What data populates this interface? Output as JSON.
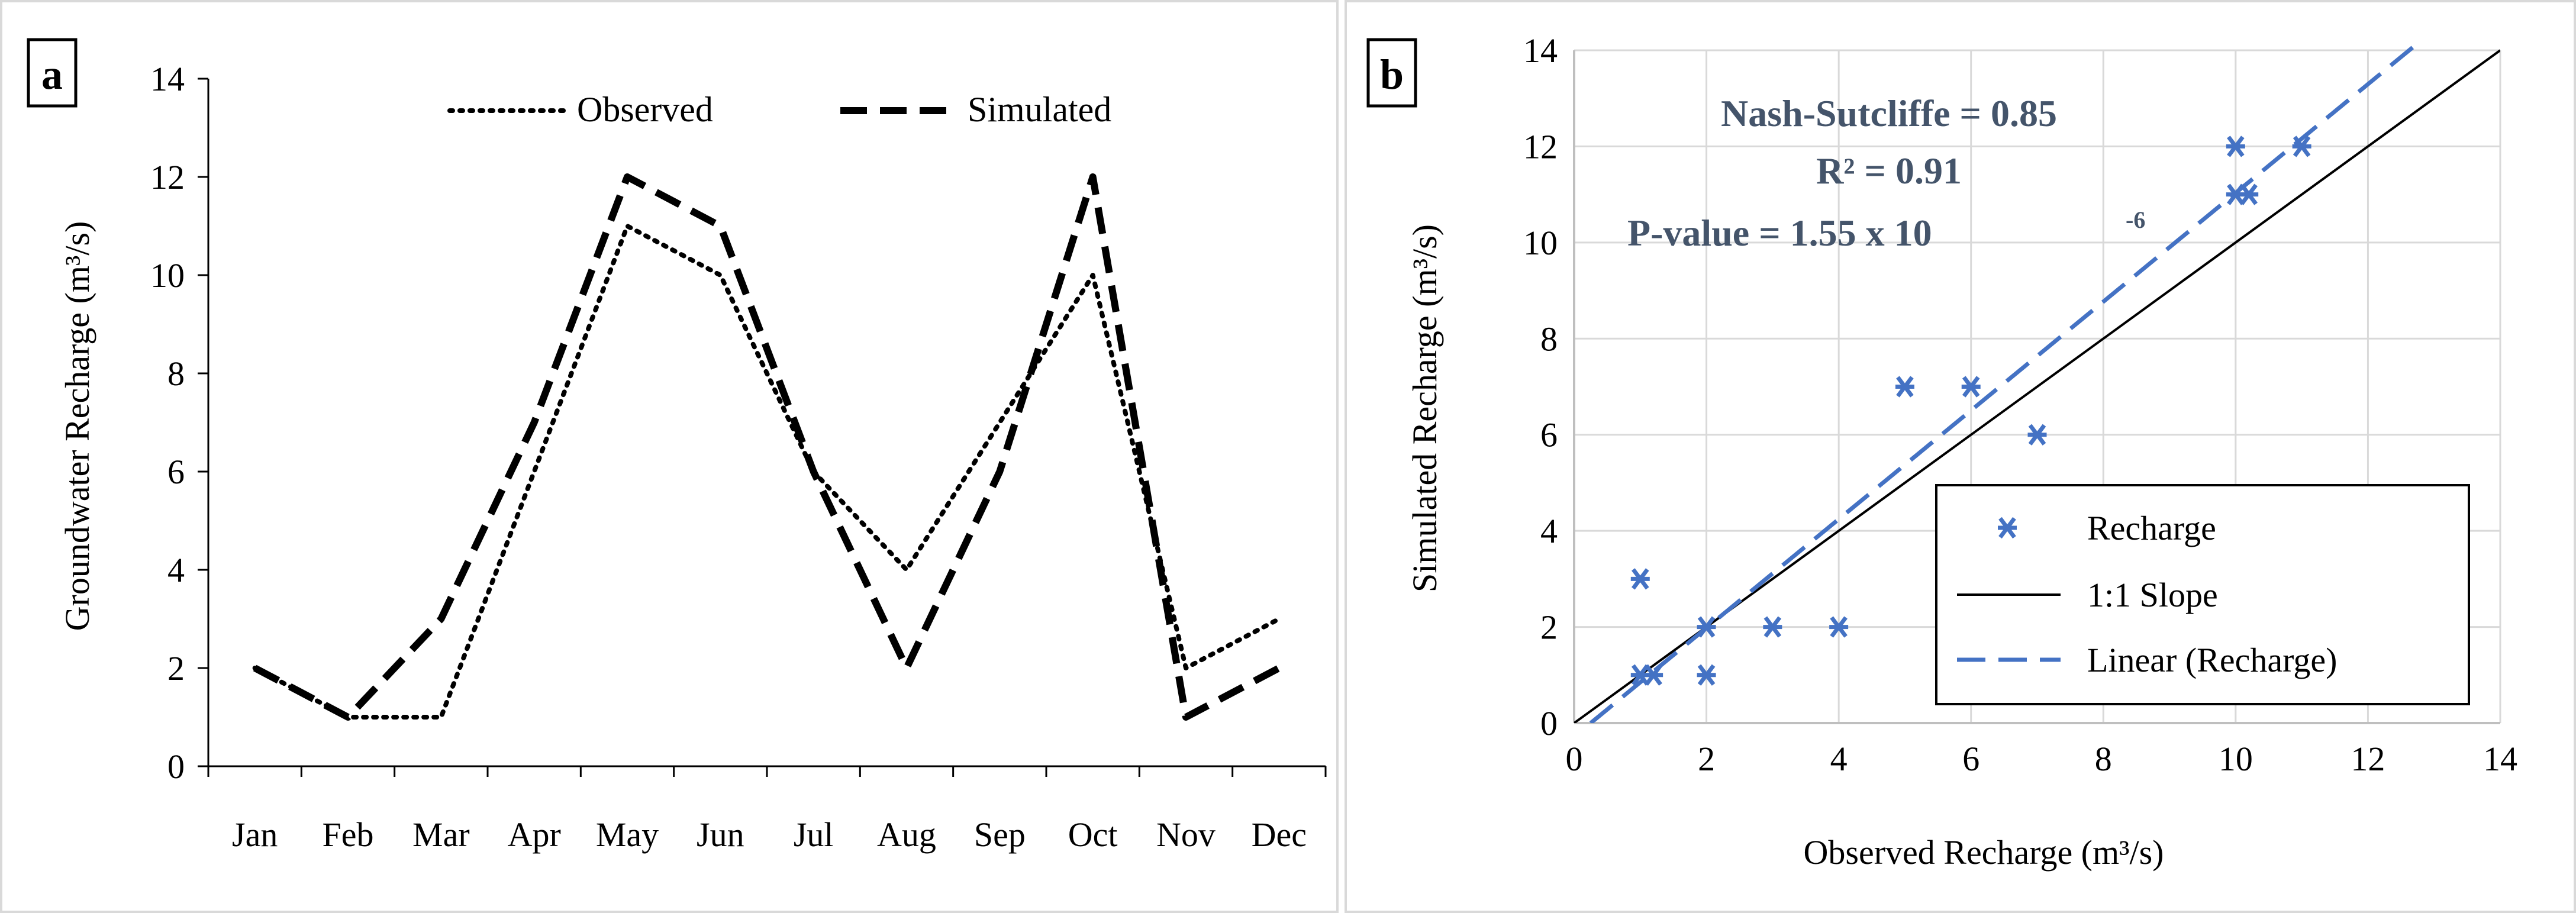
{
  "chart_data": [
    {
      "type": "line",
      "panel_label": "a",
      "categories": [
        "Jan",
        "Feb",
        "Mar",
        "Apr",
        "May",
        "Jun",
        "Jul",
        "Aug",
        "Sep",
        "Oct",
        "Nov",
        "Dec"
      ],
      "series": [
        {
          "name": "Observed",
          "style": "dotted",
          "color": "#000000",
          "values": [
            2,
            1,
            1,
            6,
            11,
            10,
            6,
            4,
            7,
            10,
            2,
            3
          ]
        },
        {
          "name": "Simulated",
          "style": "dashed",
          "color": "#000000",
          "values": [
            2,
            1,
            3,
            7,
            12,
            11,
            6,
            2,
            6,
            12,
            1,
            2
          ]
        }
      ],
      "title": "",
      "xlabel": "",
      "ylabel": "Groundwater Recharge (m³/s)",
      "ylim": [
        0,
        14
      ],
      "yticks": [
        0,
        2,
        4,
        6,
        8,
        10,
        12,
        14
      ],
      "grid": false,
      "legend_position": "top"
    },
    {
      "type": "scatter",
      "panel_label": "b",
      "series": [
        {
          "name": "Recharge",
          "marker": "asterisk",
          "color": "#4472c4",
          "points": [
            [
              1,
              3
            ],
            [
              1,
              1
            ],
            [
              1.2,
              1
            ],
            [
              2,
              2
            ],
            [
              2,
              1
            ],
            [
              3,
              2
            ],
            [
              4,
              2
            ],
            [
              5,
              7
            ],
            [
              6,
              7
            ],
            [
              7,
              6
            ],
            [
              10,
              12
            ],
            [
              10,
              11
            ],
            [
              10.2,
              11
            ],
            [
              11,
              12
            ]
          ]
        },
        {
          "name": "1:1 Slope",
          "style": "solid",
          "color": "#000000",
          "line": [
            [
              0,
              0
            ],
            [
              14,
              14
            ]
          ]
        },
        {
          "name": "Linear (Recharge)",
          "style": "dashed",
          "color": "#4472c4",
          "line": [
            [
              0.25,
              0
            ],
            [
              12.8,
              14.2
            ]
          ]
        }
      ],
      "annotations": [
        "Nash-Sutcliffe = 0.85",
        "R² = 0.91",
        "P-value = 1.55 x 10",
        "-6"
      ],
      "annotation_color": "#44546a",
      "title": "",
      "xlabel": "Observed Recharge (m³/s)",
      "ylabel": "Simulated Recharge (m³/s)",
      "xlim": [
        0,
        14
      ],
      "ylim": [
        0,
        14
      ],
      "xticks": [
        0,
        2,
        4,
        6,
        8,
        10,
        12,
        14
      ],
      "yticks": [
        0,
        2,
        4,
        6,
        8,
        10,
        12,
        14
      ],
      "grid": true,
      "legend_position": "bottom-right"
    }
  ]
}
